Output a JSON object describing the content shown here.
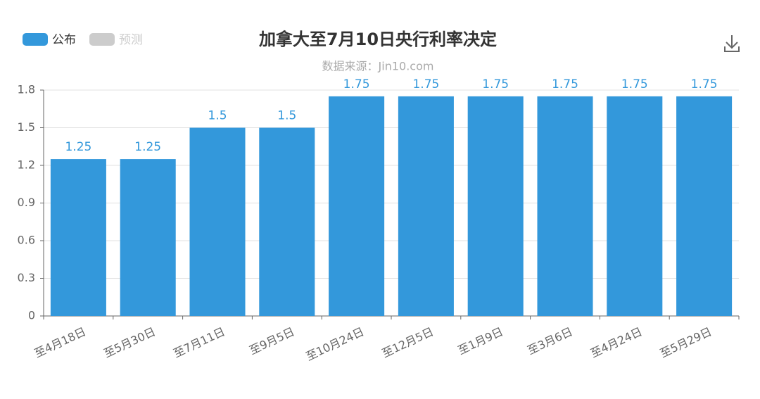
{
  "chart_data": {
    "type": "bar",
    "title": "加拿大至7月10日央行利率决定",
    "subtitle": "数据来源：Jin10.com",
    "categories": [
      "至4月18日",
      "至5月30日",
      "至7月11日",
      "至9月5日",
      "至10月24日",
      "至12月5日",
      "至1月9日",
      "至3月6日",
      "至4月24日",
      "至5月29日"
    ],
    "series": [
      {
        "name": "公布",
        "color": "#3398db",
        "visible": true,
        "values": [
          1.25,
          1.25,
          1.5,
          1.5,
          1.75,
          1.75,
          1.75,
          1.75,
          1.75,
          1.75
        ]
      },
      {
        "name": "预测",
        "color": "#cccccc",
        "visible": false,
        "values": [
          null,
          null,
          null,
          null,
          null,
          null,
          null,
          null,
          null,
          null
        ]
      }
    ],
    "ylim": [
      0,
      1.8
    ],
    "yticks": [
      0,
      0.3,
      0.6,
      0.9,
      1.2,
      1.5,
      1.8
    ],
    "grid": true,
    "legend": "top-left"
  }
}
